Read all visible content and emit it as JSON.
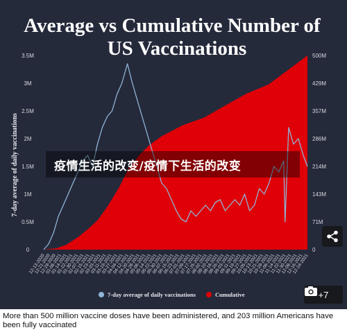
{
  "chart_data": {
    "type": "line",
    "title_lines": [
      "Average vs Cumulative Number of",
      "US Vaccinations"
    ],
    "ylabel_left": "7-day average of daily vaccinations",
    "ylabel_right": "",
    "left_axis": {
      "min": 0,
      "max": 3500000,
      "tick_values": [
        0,
        500000,
        1000000,
        1500000,
        2000000,
        2500000,
        3000000,
        3500000
      ],
      "tick_labels": [
        "0",
        "0.5M",
        "1M",
        "1.5M",
        "2M",
        "2.5M",
        "3M",
        "3.5M"
      ]
    },
    "right_axis": {
      "min": 0,
      "max": 500000000,
      "tick_values": [
        0,
        71000000,
        143000000,
        214000000,
        286000000,
        357000000,
        429000000,
        500000000
      ],
      "tick_labels": [
        "0",
        "71M",
        "143M",
        "214M",
        "286M",
        "357M",
        "429M",
        "500M"
      ]
    },
    "x_tick_labels": [
      "12-13-2020",
      "12-21-2020",
      "12-29-2020",
      "01-06-2021",
      "01-14-2021",
      "01-22-2021",
      "01-30-2021",
      "02-07-2021",
      "02-15-2021",
      "02-23-2021",
      "03-03-2021",
      "03-11-2021",
      "03-19-2021",
      "03-27-2021",
      "04-04-2021",
      "04-12-2021",
      "04-20-2021",
      "04-28-2021",
      "05-06-2021",
      "05-14-2021",
      "05-22-2021",
      "05-30-2021",
      "06-07-2021",
      "06-15-2021",
      "06-23-2021",
      "07-01-2021",
      "07-09-2021",
      "07-17-2021",
      "07-25-2021",
      "08-02-2021",
      "08-10-2021",
      "08-18-2021",
      "08-26-2021",
      "09-03-2021",
      "09-11-2021",
      "09-19-2021",
      "09-27-2021",
      "10-05-2021",
      "10-13-2021",
      "10-21-2021",
      "10-29-2021",
      "11-06-2021",
      "11-14-2021",
      "11-22-2021",
      "11-30-2021",
      "12-08-2021",
      "12-16-2021",
      "12-24-2021"
    ],
    "series": [
      {
        "name": "7-day average of daily vaccinations",
        "axis": "left",
        "color": "#8fb6d6",
        "x": [
          "2020-12-14",
          "2020-12-21",
          "2020-12-28",
          "2021-01-04",
          "2021-01-11",
          "2021-01-18",
          "2021-01-25",
          "2021-02-01",
          "2021-02-08",
          "2021-02-15",
          "2021-02-22",
          "2021-03-01",
          "2021-03-08",
          "2021-03-15",
          "2021-03-22",
          "2021-03-29",
          "2021-04-05",
          "2021-04-13",
          "2021-04-20",
          "2021-04-27",
          "2021-05-04",
          "2021-05-11",
          "2021-05-18",
          "2021-05-25",
          "2021-06-01",
          "2021-06-08",
          "2021-06-15",
          "2021-06-22",
          "2021-06-29",
          "2021-07-06",
          "2021-07-13",
          "2021-07-20",
          "2021-07-27",
          "2021-08-03",
          "2021-08-10",
          "2021-08-17",
          "2021-08-24",
          "2021-08-31",
          "2021-09-07",
          "2021-09-14",
          "2021-09-21",
          "2021-09-28",
          "2021-10-05",
          "2021-10-12",
          "2021-10-19",
          "2021-10-26",
          "2021-11-02",
          "2021-11-09",
          "2021-11-16",
          "2021-11-23",
          "2021-11-25",
          "2021-11-30",
          "2021-12-07",
          "2021-12-14",
          "2021-12-21",
          "2021-12-27"
        ],
        "y": [
          0,
          100000,
          300000,
          600000,
          800000,
          1000000,
          1200000,
          1400000,
          1600000,
          1700000,
          1500000,
          1900000,
          2200000,
          2400000,
          2500000,
          2800000,
          3000000,
          3350000,
          3000000,
          2700000,
          2400000,
          2100000,
          1800000,
          1500000,
          1200000,
          1100000,
          900000,
          700000,
          550000,
          500000,
          700000,
          600000,
          700000,
          800000,
          700000,
          850000,
          900000,
          700000,
          800000,
          900000,
          800000,
          1000000,
          700000,
          800000,
          1100000,
          1000000,
          1200000,
          1500000,
          1400000,
          1600000,
          500000,
          2200000,
          1900000,
          2000000,
          1700000,
          1500000
        ]
      },
      {
        "name": "Cumulative",
        "axis": "right",
        "color": "#e00007",
        "x": [
          "2020-12-14",
          "2021-01-01",
          "2021-01-15",
          "2021-02-01",
          "2021-02-15",
          "2021-03-01",
          "2021-03-15",
          "2021-04-01",
          "2021-04-15",
          "2021-05-01",
          "2021-05-15",
          "2021-06-01",
          "2021-06-15",
          "2021-07-01",
          "2021-08-01",
          "2021-09-01",
          "2021-10-01",
          "2021-11-01",
          "2021-12-01",
          "2021-12-27"
        ],
        "y": [
          0,
          3000000,
          12000000,
          32000000,
          52000000,
          75000000,
          110000000,
          160000000,
          210000000,
          245000000,
          270000000,
          292000000,
          305000000,
          320000000,
          340000000,
          372000000,
          402000000,
          425000000,
          465000000,
          500000000
        ]
      }
    ],
    "legend_position": "bottom-center"
  },
  "overlay_text": "疫情生活的改变/疫情下生活的改变",
  "gallery": {
    "count_label": "+7",
    "camera_icon": "camera-icon",
    "share_icon": "share-icon"
  },
  "caption": "More than 500 million vaccine doses have been administered, and 203 million Americans have been fully vaccinated",
  "colors": {
    "background": "#252a3b",
    "daily_line": "#8fb6d6",
    "cumulative_fill": "#e00007"
  }
}
